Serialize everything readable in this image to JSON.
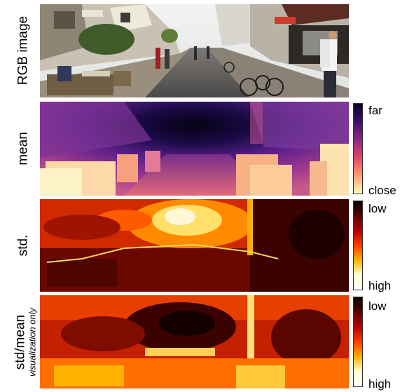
{
  "rows": [
    {
      "id": "rgb",
      "label": "RGB image",
      "sublabel": "",
      "colorbar": null
    },
    {
      "id": "mean",
      "label": "mean",
      "sublabel": "",
      "colorbar": {
        "top_label": "far",
        "bottom_label": "close",
        "stops": [
          "#0a0425",
          "#3b0f70",
          "#8c2981",
          "#de4968",
          "#fe9f6d",
          "#fcfdbf"
        ]
      }
    },
    {
      "id": "std",
      "label": "std.",
      "sublabel": "",
      "colorbar": {
        "top_label": "low",
        "bottom_label": "high",
        "stops": [
          "#000000",
          "#5a0000",
          "#b30000",
          "#ff3b00",
          "#ffb000",
          "#ffffd0",
          "#ffffff"
        ]
      }
    },
    {
      "id": "ratio",
      "label": "std/mean",
      "sublabel": "visualization only",
      "colorbar": {
        "top_label": "low",
        "bottom_label": "high",
        "stops": [
          "#000000",
          "#5a0000",
          "#b30000",
          "#ff3b00",
          "#ffb000",
          "#ffffd0",
          "#ffffff"
        ]
      }
    }
  ]
}
